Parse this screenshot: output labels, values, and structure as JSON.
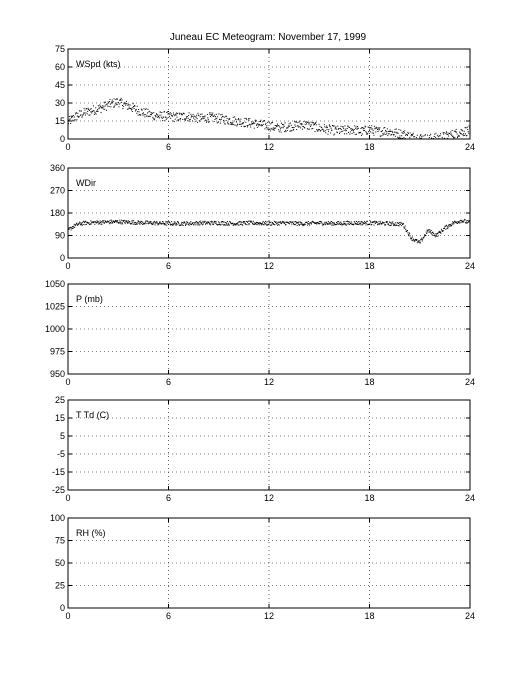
{
  "title": "Juneau EC Meteogram:  November 17, 1999",
  "chart_data": [
    {
      "type": "scatter",
      "panel_label": "WSpd (kts)",
      "xlim": [
        0,
        24
      ],
      "xticks": [
        0,
        6,
        12,
        18,
        24
      ],
      "ylim": [
        0,
        75
      ],
      "yticks": [
        0,
        15,
        30,
        45,
        60,
        75
      ],
      "grid": true,
      "trend": [
        [
          0,
          14
        ],
        [
          0.5,
          19
        ],
        [
          1,
          22
        ],
        [
          1.5,
          24
        ],
        [
          2,
          26
        ],
        [
          2.5,
          29
        ],
        [
          3,
          31
        ],
        [
          3.5,
          28
        ],
        [
          4,
          25
        ],
        [
          4.5,
          22
        ],
        [
          5,
          20
        ],
        [
          5.5,
          19
        ],
        [
          6,
          19
        ],
        [
          6.5,
          18
        ],
        [
          7,
          19
        ],
        [
          7.5,
          18
        ],
        [
          8,
          17
        ],
        [
          8.5,
          18
        ],
        [
          9,
          17
        ],
        [
          9.5,
          16
        ],
        [
          10,
          15
        ],
        [
          10.5,
          14
        ],
        [
          11,
          13
        ],
        [
          11.5,
          12
        ],
        [
          12,
          11
        ],
        [
          12.5,
          9
        ],
        [
          13,
          10
        ],
        [
          13.5,
          11
        ],
        [
          14,
          12
        ],
        [
          14.5,
          11
        ],
        [
          15,
          9
        ],
        [
          15.5,
          8
        ],
        [
          16,
          7
        ],
        [
          16.5,
          7
        ],
        [
          17,
          8
        ],
        [
          17.5,
          6
        ],
        [
          18,
          8
        ],
        [
          18.5,
          6
        ],
        [
          19,
          7
        ],
        [
          19.5,
          5
        ],
        [
          20,
          4
        ],
        [
          20.5,
          2
        ],
        [
          21,
          1
        ],
        [
          21.5,
          0
        ],
        [
          22,
          1
        ],
        [
          22.5,
          2
        ],
        [
          23,
          4
        ],
        [
          23.5,
          6
        ],
        [
          24,
          7
        ]
      ],
      "scatter_amplitude": 4
    },
    {
      "type": "scatter",
      "panel_label": "WDir",
      "xlim": [
        0,
        24
      ],
      "xticks": [
        0,
        6,
        12,
        18,
        24
      ],
      "ylim": [
        0,
        360
      ],
      "yticks": [
        0,
        90,
        180,
        270,
        360
      ],
      "grid": true,
      "trend": [
        [
          0,
          110
        ],
        [
          0.3,
          125
        ],
        [
          0.6,
          135
        ],
        [
          1,
          140
        ],
        [
          2,
          143
        ],
        [
          3,
          145
        ],
        [
          4,
          142
        ],
        [
          5,
          140
        ],
        [
          6,
          138
        ],
        [
          7,
          138
        ],
        [
          8,
          140
        ],
        [
          9,
          140
        ],
        [
          10,
          138
        ],
        [
          11,
          140
        ],
        [
          12,
          138
        ],
        [
          13,
          140
        ],
        [
          14,
          137
        ],
        [
          15,
          140
        ],
        [
          16,
          138
        ],
        [
          17,
          140
        ],
        [
          18,
          140
        ],
        [
          19,
          138
        ],
        [
          20,
          135
        ],
        [
          20.5,
          80
        ],
        [
          21,
          60
        ],
        [
          21.5,
          110
        ],
        [
          22,
          90
        ],
        [
          22.5,
          120
        ],
        [
          23,
          140
        ],
        [
          23.5,
          150
        ],
        [
          24,
          140
        ]
      ],
      "scatter_amplitude": 8
    },
    {
      "type": "scatter",
      "panel_label": "P (mb)",
      "xlim": [
        0,
        24
      ],
      "xticks": [
        0,
        6,
        12,
        18,
        24
      ],
      "ylim": [
        950,
        1050
      ],
      "yticks": [
        950,
        975,
        1000,
        1025,
        1050
      ],
      "grid": true,
      "trend": []
    },
    {
      "type": "scatter",
      "panel_label": "T Td (C)",
      "xlim": [
        0,
        24
      ],
      "xticks": [
        0,
        6,
        12,
        18,
        24
      ],
      "ylim": [
        -25,
        25
      ],
      "yticks": [
        -25,
        -15,
        -5,
        5,
        15,
        25
      ],
      "grid": true,
      "trend": []
    },
    {
      "type": "scatter",
      "panel_label": "RH (%)",
      "xlim": [
        0,
        24
      ],
      "xticks": [
        0,
        6,
        12,
        18,
        24
      ],
      "ylim": [
        0,
        100
      ],
      "yticks": [
        0,
        25,
        50,
        75,
        100
      ],
      "grid": true,
      "trend": []
    }
  ]
}
